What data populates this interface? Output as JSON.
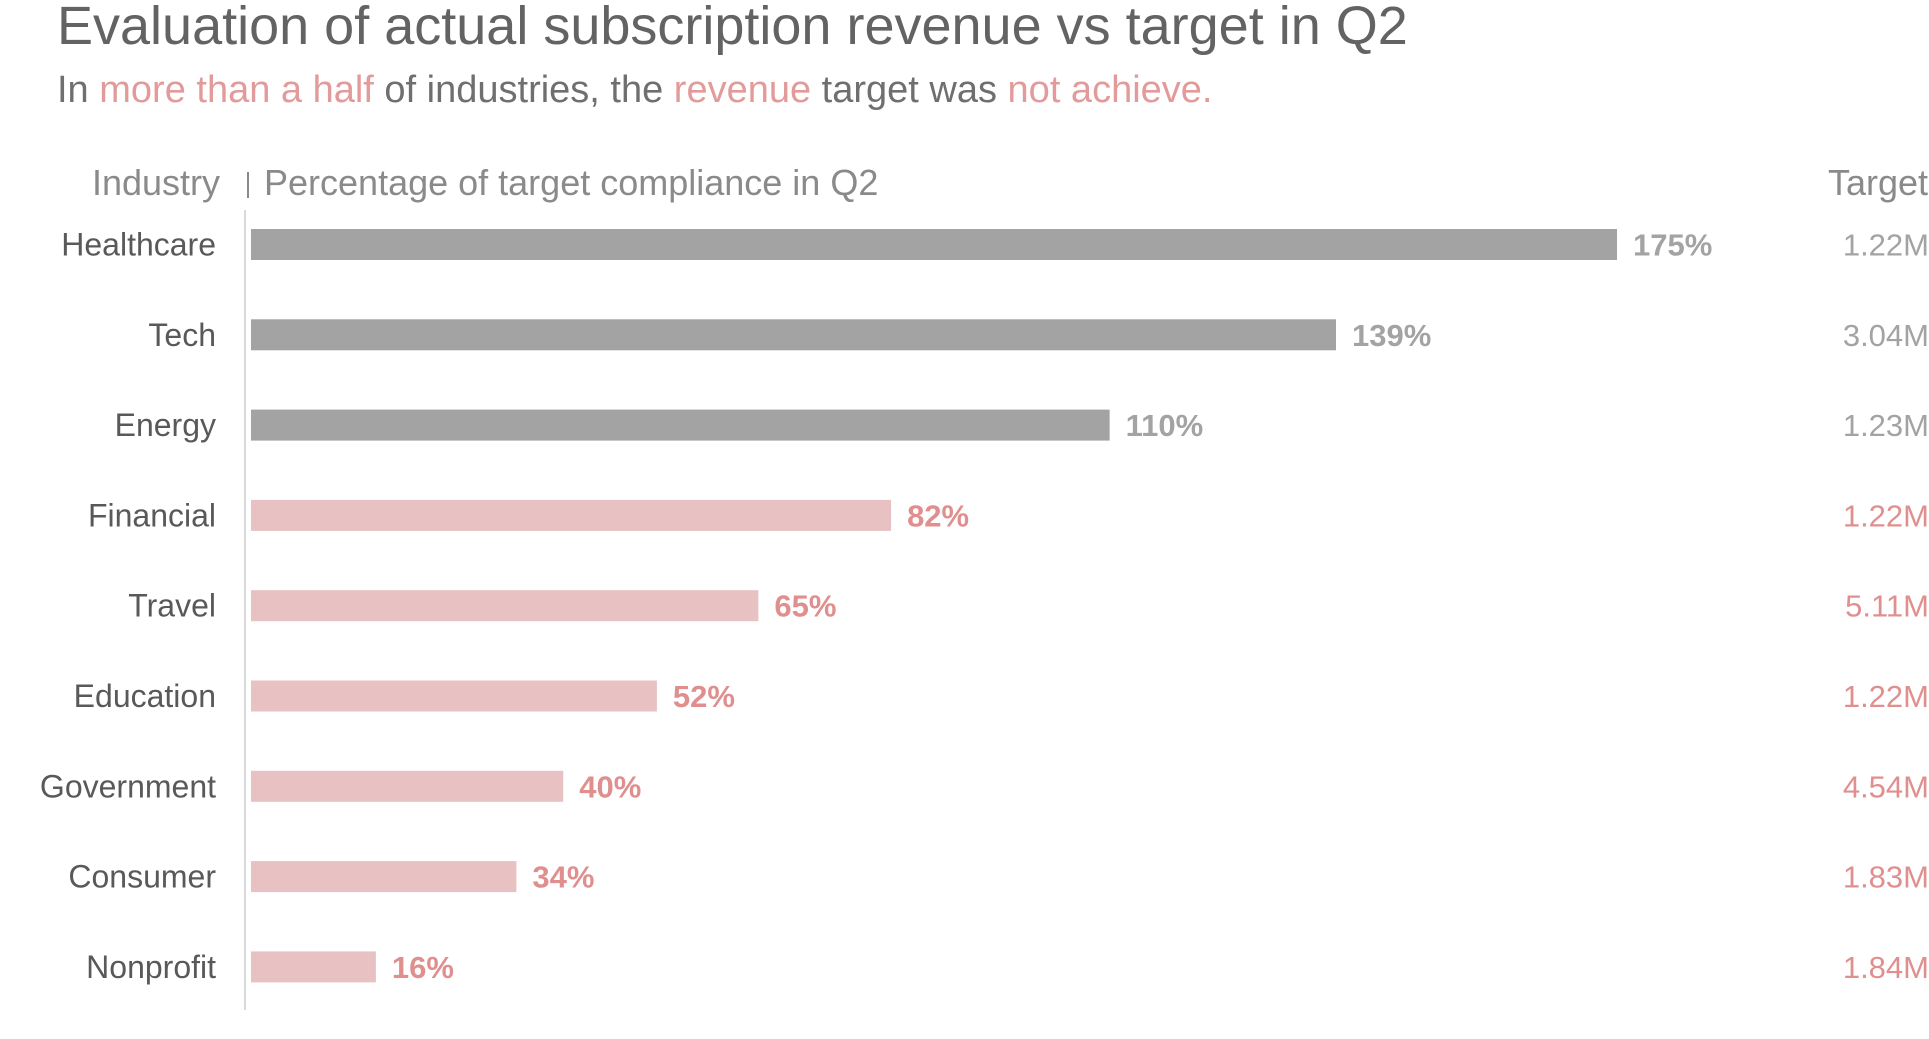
{
  "title": "Evaluation of actual subscription revenue vs target in Q2",
  "subtitle": {
    "part1": "In ",
    "hl1": "more than a half",
    "part2": " of industries, the ",
    "hl2": "revenue",
    "part3": " target was ",
    "hl3": "not achieve."
  },
  "colors": {
    "achieved_bar": "#a3a3a3",
    "missed_bar": "#e8c2c2",
    "achieved_label": "#a3a3a3",
    "missed_label": "#e08f8f",
    "category_text": "#595959",
    "axis_line": "#d9d9d9"
  },
  "chart_data": {
    "type": "bar",
    "orientation": "horizontal",
    "title": "Percentage of target compliance in Q2",
    "category_header": "Industry",
    "target_header": "Target",
    "categories": [
      "Healthcare",
      "Tech",
      "Energy",
      "Financial",
      "Travel",
      "Education",
      "Government",
      "Consumer",
      "Nonprofit"
    ],
    "values": [
      175,
      139,
      110,
      82,
      65,
      52,
      40,
      34,
      16
    ],
    "value_labels": [
      "175%",
      "139%",
      "110%",
      "82%",
      "65%",
      "52%",
      "40%",
      "34%",
      "16%"
    ],
    "targets": [
      "1.22M",
      "3.04M",
      "1.23M",
      "1.22M",
      "5.11M",
      "1.22M",
      "4.54M",
      "1.83M",
      "1.84M"
    ],
    "unit": "%",
    "threshold": 100,
    "xlim": [
      0,
      175
    ]
  }
}
